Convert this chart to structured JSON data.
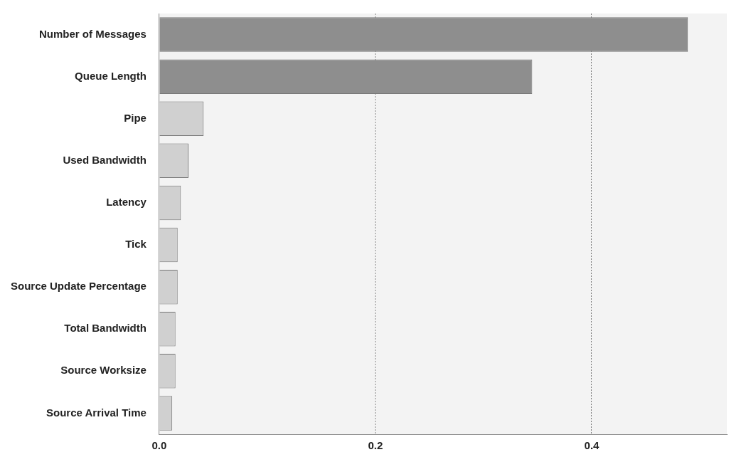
{
  "chart_data": {
    "type": "bar",
    "orientation": "horizontal",
    "categories": [
      "Number of Messages",
      "Queue Length",
      "Pipe",
      "Used Bandwidth",
      "Latency",
      "Tick",
      "Source Update Percentage",
      "Total Bandwidth",
      "Source Worksize",
      "Source Arrival Time"
    ],
    "values": [
      0.489,
      0.345,
      0.041,
      0.027,
      0.02,
      0.017,
      0.017,
      0.015,
      0.015,
      0.012
    ],
    "colors": [
      "#8e8e8e",
      "#8e8e8e",
      "#d0d0d0",
      "#d0d0d0",
      "#d0d0d0",
      "#d0d0d0",
      "#d0d0d0",
      "#d0d0d0",
      "#d0d0d0",
      "#d0d0d0"
    ],
    "xlim": [
      0,
      0.525
    ],
    "xticks": [
      {
        "value": 0,
        "label": "0.0"
      },
      {
        "value": 0.2,
        "label": "0.2"
      },
      {
        "value": 0.4,
        "label": "0.4"
      }
    ],
    "grid": "x",
    "legend": false
  }
}
